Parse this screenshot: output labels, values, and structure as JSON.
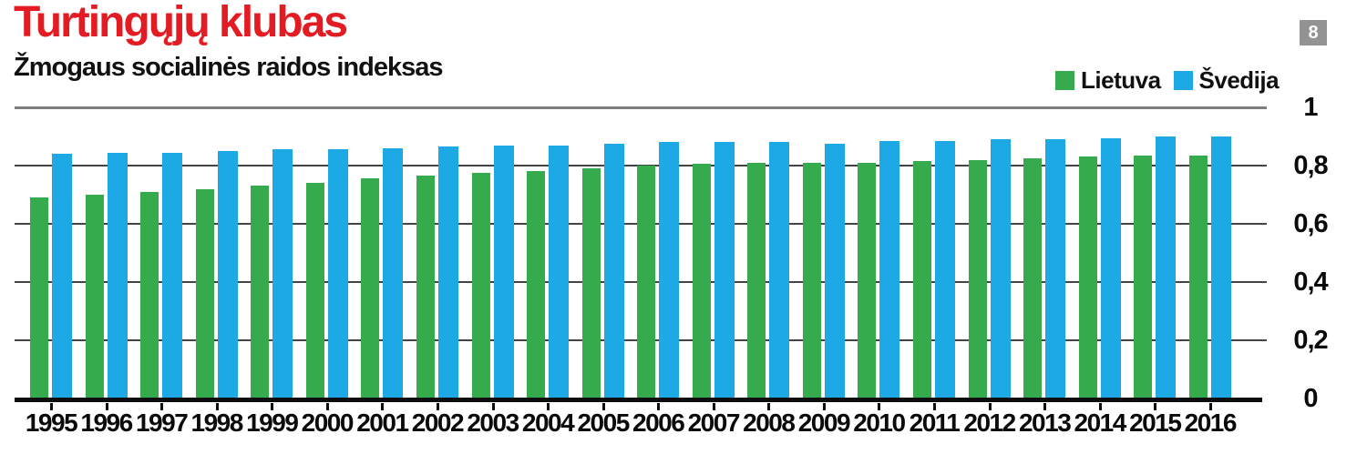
{
  "page": {
    "title": "Turtingųjų klubas",
    "subtitle": "Žmogaus socialinės raidos indeksas",
    "page_badge": "8"
  },
  "legend": {
    "items": [
      {
        "label": "Lietuva",
        "color": "#36ab4e"
      },
      {
        "label": "Švedija",
        "color": "#1da9e5"
      }
    ]
  },
  "colors": {
    "title_red": "#e31b22",
    "lietuva_green": "#36ab4e",
    "svedija_blue": "#1da9e5",
    "badge_gray": "#939393",
    "gridline": "#434343",
    "top_rule": "#7f7f7f",
    "axis_black": "#0d0d0d"
  },
  "chart_data": {
    "type": "bar",
    "title": "Turtingųjų klubas",
    "subtitle": "Žmogaus socialinės raidos indeksas",
    "categories": [
      1995,
      1996,
      1997,
      1998,
      1999,
      2000,
      2001,
      2002,
      2003,
      2004,
      2005,
      2006,
      2007,
      2008,
      2009,
      2010,
      2011,
      2012,
      2013,
      2014,
      2015,
      2016
    ],
    "series": [
      {
        "name": "Lietuva",
        "color": "#36ab4e",
        "values": [
          0.69,
          0.7,
          0.71,
          0.72,
          0.73,
          0.74,
          0.755,
          0.765,
          0.775,
          0.78,
          0.79,
          0.8,
          0.805,
          0.81,
          0.81,
          0.81,
          0.815,
          0.82,
          0.825,
          0.83,
          0.835,
          0.835
        ]
      },
      {
        "name": "Švedija",
        "color": "#1da9e5",
        "values": [
          0.84,
          0.845,
          0.845,
          0.85,
          0.855,
          0.855,
          0.86,
          0.865,
          0.87,
          0.87,
          0.875,
          0.88,
          0.88,
          0.88,
          0.875,
          0.885,
          0.885,
          0.89,
          0.89,
          0.895,
          0.9,
          0.9
        ]
      }
    ],
    "xlabel": "",
    "ylabel": "",
    "ylim": [
      0,
      1
    ],
    "yticks": [
      {
        "value": 0,
        "label": "0"
      },
      {
        "value": 0.2,
        "label": "0,2"
      },
      {
        "value": 0.4,
        "label": "0,4"
      },
      {
        "value": 0.6,
        "label": "0,6"
      },
      {
        "value": 0.8,
        "label": "0,8"
      },
      {
        "value": 1,
        "label": "1"
      }
    ],
    "grid": true,
    "legend_position": "top-right"
  }
}
